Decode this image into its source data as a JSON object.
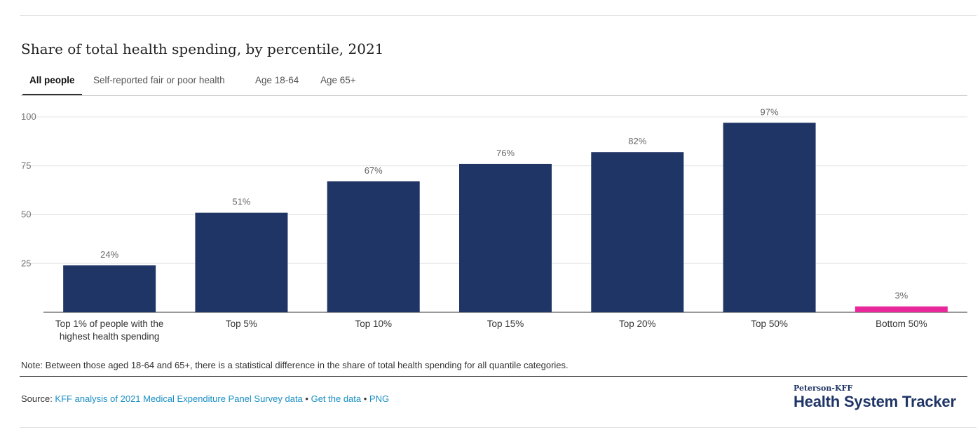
{
  "title": "Share of total health spending, by percentile, 2021",
  "tabs": [
    {
      "label": "All people"
    },
    {
      "label": "Self-reported fair or poor health"
    },
    {
      "label": "Age 18-64"
    },
    {
      "label": "Age 65+"
    }
  ],
  "active_tab": "All people",
  "chart_data": {
    "type": "bar",
    "title": "Share of total health spending, by percentile, 2021",
    "xlabel": "",
    "ylabel": "",
    "ylim": [
      0,
      100
    ],
    "yticks": [
      25,
      50,
      75,
      100
    ],
    "grid": true,
    "categories": [
      "Top 1% of people with the highest health spending",
      "Top 5%",
      "Top 10%",
      "Top 15%",
      "Top 20%",
      "Top 50%",
      "Bottom 50%"
    ],
    "values": [
      24,
      51,
      67,
      76,
      82,
      97,
      3
    ],
    "data_labels": [
      "24%",
      "51%",
      "67%",
      "76%",
      "82%",
      "97%",
      "3%"
    ],
    "colors": [
      "#1f3566",
      "#1f3566",
      "#1f3566",
      "#1f3566",
      "#1f3566",
      "#1f3566",
      "#e8279b"
    ]
  },
  "note": "Note: Between those aged 18-64 and 65+, there is a statistical difference in the share of total health spending for all quantile categories.",
  "source": {
    "prefix": "Source: ",
    "link1": "KFF analysis of 2021 Medical Expenditure Panel Survey data",
    "sep": " • ",
    "link2": "Get the data",
    "link3": "PNG"
  },
  "logo": {
    "small": "Peterson-KFF",
    "big": "Health System Tracker"
  }
}
